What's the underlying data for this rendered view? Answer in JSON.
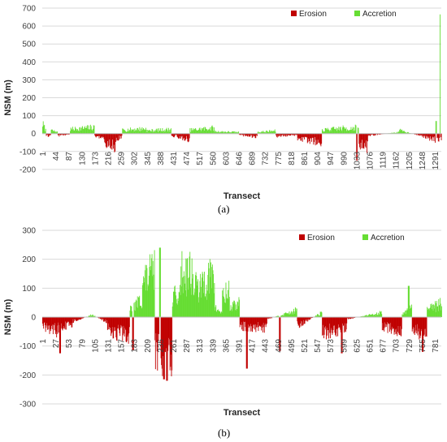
{
  "colors": {
    "erosion": "#c00000",
    "accretion": "#66dd33",
    "grid": "#d9d9d9",
    "axis": "#bfbfbf"
  },
  "captions": [
    "(a)",
    "(b)"
  ],
  "chart_data": [
    {
      "type": "bar",
      "caption": "(a)",
      "xlabel": "Transect",
      "ylabel": "NSM (m)",
      "ylim": [
        -300,
        700
      ],
      "yticks": [
        -200,
        -100,
        0,
        100,
        200,
        300,
        400,
        500,
        600,
        700
      ],
      "grid": true,
      "legend": "top-right",
      "xtick_labels": [
        "1",
        "44",
        "87",
        "130",
        "173",
        "216",
        "259",
        "302",
        "345",
        "388",
        "431",
        "474",
        "517",
        "560",
        "603",
        "646",
        "689",
        "732",
        "775",
        "818",
        "861",
        "904",
        "947",
        "990",
        "1033",
        "1076",
        "1119",
        "1162",
        "1205",
        "1248",
        "1291"
      ],
      "n_transects": 1300,
      "series": [
        {
          "name": "Erosion",
          "color": "#c00000"
        },
        {
          "name": "Accretion",
          "color": "#66dd33"
        }
      ],
      "segments": [
        {
          "x": [
            1,
            12
          ],
          "v": [
            70,
            20
          ]
        },
        {
          "x": [
            12,
            28
          ],
          "v": [
            -20,
            -10
          ]
        },
        {
          "x": [
            28,
            50
          ],
          "v": [
            25,
            10
          ]
        },
        {
          "x": [
            50,
            90
          ],
          "v": [
            -15,
            -5
          ]
        },
        {
          "x": [
            90,
            170
          ],
          "v": [
            30,
            45
          ]
        },
        {
          "x": [
            170,
            200
          ],
          "v": [
            -20,
            -30
          ]
        },
        {
          "x": [
            200,
            240
          ],
          "v": [
            -70,
            -90
          ]
        },
        {
          "x": [
            240,
            260
          ],
          "v": [
            -40,
            -20
          ]
        },
        {
          "x": [
            260,
            340
          ],
          "v": [
            25,
            35
          ]
        },
        {
          "x": [
            340,
            420
          ],
          "v": [
            20,
            30
          ]
        },
        {
          "x": [
            420,
            440
          ],
          "v": [
            -20,
            -15
          ]
        },
        {
          "x": [
            440,
            480
          ],
          "v": [
            -25,
            -45
          ]
        },
        {
          "x": [
            480,
            560
          ],
          "v": [
            25,
            40
          ]
        },
        {
          "x": [
            560,
            640
          ],
          "v": [
            15,
            10
          ]
        },
        {
          "x": [
            640,
            700
          ],
          "v": [
            -10,
            -25
          ]
        },
        {
          "x": [
            700,
            760
          ],
          "v": [
            10,
            20
          ]
        },
        {
          "x": [
            760,
            830
          ],
          "v": [
            -20,
            -10
          ]
        },
        {
          "x": [
            830,
            910
          ],
          "v": [
            -40,
            -60
          ]
        },
        {
          "x": [
            910,
            990
          ],
          "v": [
            25,
            40
          ]
        },
        {
          "x": [
            990,
            1030
          ],
          "v": [
            30,
            50
          ]
        },
        {
          "x": [
            1030,
            1060
          ],
          "v": [
            -70,
            -100
          ]
        },
        {
          "x": [
            1060,
            1160
          ],
          "v": [
            -15,
            10
          ]
        },
        {
          "x": [
            1160,
            1250
          ],
          "v": [
            25,
            -25
          ]
        },
        {
          "x": [
            1250,
            1293
          ],
          "v": [
            -30,
            -50
          ]
        },
        {
          "x": [
            1293,
            1300
          ],
          "v": [
            -35,
            -50
          ]
        }
      ],
      "spikes": [
        {
          "x": 1024,
          "value": -150
        },
        {
          "x": 1282,
          "value": 70
        },
        {
          "x": 1295,
          "value": 665
        }
      ]
    },
    {
      "type": "bar",
      "caption": "(b)",
      "xlabel": "Transect",
      "ylabel": "NSM (m)",
      "ylim": [
        -300,
        300
      ],
      "yticks": [
        -300,
        -200,
        -100,
        0,
        100,
        200,
        300
      ],
      "grid": true,
      "legend": "top-right",
      "xtick_labels": [
        "1",
        "27",
        "53",
        "79",
        "105",
        "131",
        "157",
        "183",
        "209",
        "235",
        "261",
        "287",
        "313",
        "339",
        "365",
        "391",
        "417",
        "443",
        "469",
        "495",
        "521",
        "547",
        "573",
        "599",
        "625",
        "651",
        "677",
        "703",
        "729",
        "755",
        "781"
      ],
      "n_transects": 800,
      "series": [
        {
          "name": "Erosion",
          "color": "#c00000"
        },
        {
          "name": "Accretion",
          "color": "#66dd33"
        }
      ],
      "segments": [
        {
          "x": [
            1,
            30
          ],
          "v": [
            -40,
            -60
          ]
        },
        {
          "x": [
            30,
            60
          ],
          "v": [
            -50,
            -30
          ]
        },
        {
          "x": [
            60,
            100
          ],
          "v": [
            -20,
            10
          ]
        },
        {
          "x": [
            100,
            130
          ],
          "v": [
            10,
            -20
          ]
        },
        {
          "x": [
            130,
            175
          ],
          "v": [
            -60,
            -80
          ]
        },
        {
          "x": [
            175,
            200
          ],
          "v": [
            30,
            80
          ]
        },
        {
          "x": [
            200,
            225
          ],
          "v": [
            150,
            200
          ]
        },
        {
          "x": [
            225,
            260
          ],
          "v": [
            -150,
            -200
          ]
        },
        {
          "x": [
            260,
            275
          ],
          "v": [
            100,
            80
          ]
        },
        {
          "x": [
            275,
            300
          ],
          "v": [
            190,
            210
          ]
        },
        {
          "x": [
            300,
            320
          ],
          "v": [
            150,
            120
          ]
        },
        {
          "x": [
            320,
            345
          ],
          "v": [
            160,
            180
          ]
        },
        {
          "x": [
            345,
            360
          ],
          "v": [
            40,
            20
          ]
        },
        {
          "x": [
            360,
            375
          ],
          "v": [
            90,
            110
          ]
        },
        {
          "x": [
            375,
            395
          ],
          "v": [
            40,
            60
          ]
        },
        {
          "x": [
            395,
            450
          ],
          "v": [
            -40,
            -50
          ]
        },
        {
          "x": [
            450,
            510
          ],
          "v": [
            -10,
            30
          ]
        },
        {
          "x": [
            510,
            560
          ],
          "v": [
            -40,
            20
          ]
        },
        {
          "x": [
            560,
            610
          ],
          "v": [
            -70,
            -50
          ]
        },
        {
          "x": [
            610,
            680
          ],
          "v": [
            -10,
            20
          ]
        },
        {
          "x": [
            680,
            720
          ],
          "v": [
            -40,
            -60
          ]
        },
        {
          "x": [
            720,
            740
          ],
          "v": [
            10,
            40
          ]
        },
        {
          "x": [
            740,
            770
          ],
          "v": [
            -50,
            -80
          ]
        },
        {
          "x": [
            770,
            800
          ],
          "v": [
            30,
            60
          ]
        }
      ],
      "spikes": [
        {
          "x": 36,
          "value": -125
        },
        {
          "x": 182,
          "value": -115
        },
        {
          "x": 236,
          "value": 240
        },
        {
          "x": 244,
          "value": -215
        },
        {
          "x": 250,
          "value": -220
        },
        {
          "x": 410,
          "value": -178
        },
        {
          "x": 476,
          "value": -118
        },
        {
          "x": 600,
          "value": -125
        },
        {
          "x": 734,
          "value": 108
        },
        {
          "x": 762,
          "value": -120
        }
      ]
    }
  ]
}
